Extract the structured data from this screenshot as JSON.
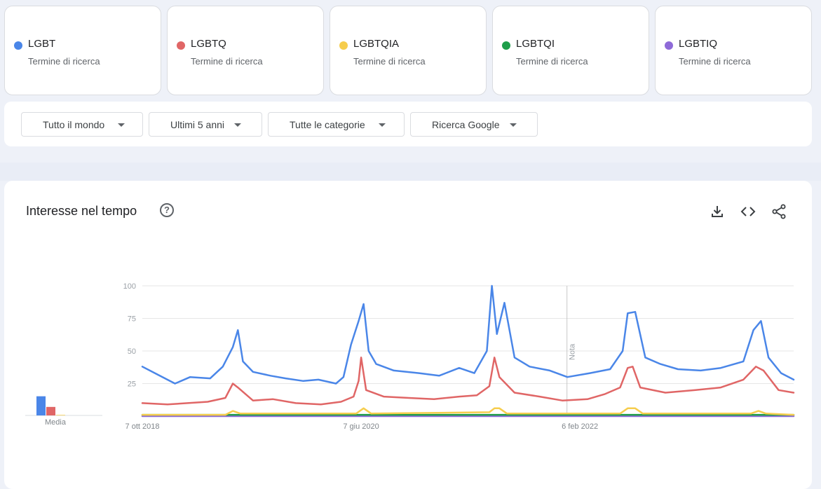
{
  "terms": [
    {
      "name": "LGBT",
      "subtitle": "Termine di ricerca",
      "color": "#4a86e8"
    },
    {
      "name": "LGBTQ",
      "subtitle": "Termine di ricerca",
      "color": "#e06666"
    },
    {
      "name": "LGBTQIA",
      "subtitle": "Termine di ricerca",
      "color": "#f6cd4d"
    },
    {
      "name": "LGBTQI",
      "subtitle": "Termine di ricerca",
      "color": "#1e9e4a"
    },
    {
      "name": "LGBTIQ",
      "subtitle": "Termine di ricerca",
      "color": "#8e6ad8"
    }
  ],
  "filters": {
    "region": "Tutto il mondo",
    "period": "Ultimi 5 anni",
    "category": "Tutte le categorie",
    "source": "Ricerca Google"
  },
  "section": {
    "title": "Interesse nel tempo",
    "help_icon": "help-circle-icon",
    "tools": [
      "download-icon",
      "embed-code-icon",
      "share-icon"
    ],
    "average_label": "Media"
  },
  "chart_data": {
    "type": "line",
    "x_tick_labels": [
      "7 ott 2018",
      "7 giu 2020",
      "6 feb 2022"
    ],
    "x_tick_dates": [
      "2018-10-07",
      "2020-06-07",
      "2022-02-06"
    ],
    "x_range": [
      "2018-10-07",
      "2023-09-24"
    ],
    "ylim": [
      0,
      100
    ],
    "yticks": [
      25,
      50,
      75,
      100
    ],
    "grid": true,
    "annotation": {
      "label": "Nota",
      "date": "2022-01-01"
    },
    "averages": [
      {
        "name": "LGBT",
        "value": 36
      },
      {
        "name": "LGBTQ",
        "value": 16
      },
      {
        "name": "LGBTQIA",
        "value": 1
      }
    ],
    "series": [
      {
        "name": "LGBT",
        "color": "#4a86e8",
        "points": [
          [
            "2018-10-07",
            38
          ],
          [
            "2018-11-18",
            32
          ],
          [
            "2019-01-06",
            25
          ],
          [
            "2019-02-17",
            30
          ],
          [
            "2019-04-14",
            29
          ],
          [
            "2019-05-19",
            38
          ],
          [
            "2019-06-16",
            53
          ],
          [
            "2019-06-30",
            66
          ],
          [
            "2019-07-14",
            42
          ],
          [
            "2019-08-11",
            34
          ],
          [
            "2019-09-29",
            31
          ],
          [
            "2019-11-10",
            29
          ],
          [
            "2019-12-29",
            27
          ],
          [
            "2020-02-09",
            28
          ],
          [
            "2020-03-29",
            25
          ],
          [
            "2020-04-19",
            30
          ],
          [
            "2020-05-10",
            55
          ],
          [
            "2020-05-31",
            73
          ],
          [
            "2020-06-14",
            86
          ],
          [
            "2020-06-28",
            50
          ],
          [
            "2020-07-19",
            40
          ],
          [
            "2020-09-06",
            35
          ],
          [
            "2020-11-15",
            33
          ],
          [
            "2021-01-10",
            31
          ],
          [
            "2021-03-07",
            37
          ],
          [
            "2021-04-18",
            33
          ],
          [
            "2021-05-23",
            50
          ],
          [
            "2021-06-06",
            100
          ],
          [
            "2021-06-20",
            63
          ],
          [
            "2021-07-11",
            87
          ],
          [
            "2021-08-08",
            45
          ],
          [
            "2021-09-19",
            38
          ],
          [
            "2021-11-14",
            35
          ],
          [
            "2022-01-02",
            30
          ],
          [
            "2022-03-06",
            33
          ],
          [
            "2022-05-01",
            36
          ],
          [
            "2022-06-05",
            50
          ],
          [
            "2022-06-19",
            79
          ],
          [
            "2022-07-10",
            80
          ],
          [
            "2022-08-07",
            45
          ],
          [
            "2022-09-18",
            40
          ],
          [
            "2022-11-06",
            36
          ],
          [
            "2023-01-08",
            35
          ],
          [
            "2023-03-05",
            37
          ],
          [
            "2023-05-07",
            42
          ],
          [
            "2023-06-04",
            66
          ],
          [
            "2023-06-25",
            73
          ],
          [
            "2023-07-16",
            45
          ],
          [
            "2023-08-20",
            33
          ],
          [
            "2023-09-24",
            28
          ]
        ]
      },
      {
        "name": "LGBTQ",
        "color": "#e06666",
        "points": [
          [
            "2018-10-07",
            10
          ],
          [
            "2018-12-16",
            9
          ],
          [
            "2019-02-10",
            10
          ],
          [
            "2019-04-07",
            11
          ],
          [
            "2019-05-26",
            14
          ],
          [
            "2019-06-16",
            25
          ],
          [
            "2019-06-30",
            22
          ],
          [
            "2019-08-11",
            12
          ],
          [
            "2019-10-06",
            13
          ],
          [
            "2019-12-08",
            10
          ],
          [
            "2020-02-16",
            9
          ],
          [
            "2020-04-12",
            11
          ],
          [
            "2020-05-17",
            15
          ],
          [
            "2020-05-31",
            27
          ],
          [
            "2020-06-07",
            45
          ],
          [
            "2020-06-21",
            20
          ],
          [
            "2020-08-09",
            15
          ],
          [
            "2020-10-18",
            14
          ],
          [
            "2020-12-27",
            13
          ],
          [
            "2021-03-07",
            15
          ],
          [
            "2021-04-25",
            16
          ],
          [
            "2021-05-30",
            23
          ],
          [
            "2021-06-13",
            45
          ],
          [
            "2021-06-27",
            30
          ],
          [
            "2021-08-08",
            18
          ],
          [
            "2021-10-17",
            15
          ],
          [
            "2021-12-19",
            12
          ],
          [
            "2022-02-27",
            13
          ],
          [
            "2022-04-17",
            17
          ],
          [
            "2022-05-29",
            22
          ],
          [
            "2022-06-19",
            37
          ],
          [
            "2022-07-03",
            38
          ],
          [
            "2022-07-24",
            22
          ],
          [
            "2022-10-02",
            18
          ],
          [
            "2022-12-25",
            20
          ],
          [
            "2023-03-05",
            22
          ],
          [
            "2023-05-07",
            28
          ],
          [
            "2023-06-11",
            38
          ],
          [
            "2023-07-02",
            35
          ],
          [
            "2023-08-13",
            20
          ],
          [
            "2023-09-24",
            18
          ]
        ]
      },
      {
        "name": "LGBTQIA",
        "color": "#f6cd4d",
        "points": [
          [
            "2018-10-07",
            1
          ],
          [
            "2019-05-26",
            1
          ],
          [
            "2019-06-16",
            4
          ],
          [
            "2019-07-07",
            2
          ],
          [
            "2020-05-24",
            2
          ],
          [
            "2020-06-14",
            6
          ],
          [
            "2020-07-05",
            2
          ],
          [
            "2021-05-30",
            3
          ],
          [
            "2021-06-13",
            6
          ],
          [
            "2021-06-27",
            6
          ],
          [
            "2021-07-18",
            2
          ],
          [
            "2022-05-29",
            2
          ],
          [
            "2022-06-19",
            6
          ],
          [
            "2022-07-10",
            6
          ],
          [
            "2022-07-31",
            2
          ],
          [
            "2023-05-28",
            2
          ],
          [
            "2023-06-18",
            4
          ],
          [
            "2023-07-09",
            2
          ],
          [
            "2023-09-24",
            1
          ]
        ]
      },
      {
        "name": "LGBTQI",
        "color": "#1e9e4a",
        "points": [
          [
            "2018-10-07",
            1
          ],
          [
            "2023-09-24",
            1
          ]
        ]
      },
      {
        "name": "LGBTIQ",
        "color": "#8e6ad8",
        "points": [
          [
            "2018-10-07",
            0
          ],
          [
            "2023-09-24",
            0
          ]
        ]
      }
    ]
  }
}
